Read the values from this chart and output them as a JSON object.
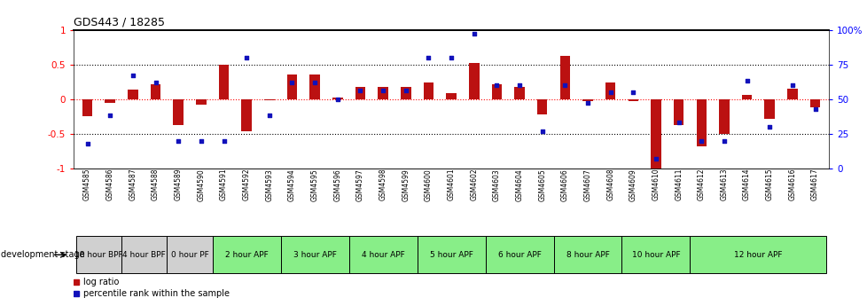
{
  "title": "GDS443 / 18285",
  "samples": [
    "GSM4585",
    "GSM4586",
    "GSM4587",
    "GSM4588",
    "GSM4589",
    "GSM4590",
    "GSM4591",
    "GSM4592",
    "GSM4593",
    "GSM4594",
    "GSM4595",
    "GSM4596",
    "GSM4597",
    "GSM4598",
    "GSM4599",
    "GSM4600",
    "GSM4601",
    "GSM4602",
    "GSM4603",
    "GSM4604",
    "GSM4605",
    "GSM4606",
    "GSM4607",
    "GSM4608",
    "GSM4609",
    "GSM4610",
    "GSM4611",
    "GSM4612",
    "GSM4613",
    "GSM4614",
    "GSM4615",
    "GSM4616",
    "GSM4617"
  ],
  "log_ratio": [
    -0.25,
    -0.05,
    0.14,
    0.22,
    -0.38,
    -0.08,
    0.5,
    -0.46,
    -0.02,
    0.36,
    0.36,
    0.02,
    0.18,
    0.18,
    0.18,
    0.24,
    0.08,
    0.52,
    0.22,
    0.18,
    -0.22,
    0.62,
    -0.03,
    0.24,
    -0.03,
    -1.0,
    -0.38,
    -0.68,
    -0.5,
    0.06,
    -0.28,
    0.15,
    -0.12
  ],
  "percentile": [
    18,
    38,
    67,
    62,
    20,
    20,
    20,
    80,
    38,
    62,
    62,
    50,
    56,
    56,
    56,
    80,
    80,
    97,
    60,
    60,
    27,
    60,
    47,
    55,
    55,
    7,
    33,
    20,
    20,
    63,
    30,
    60,
    43
  ],
  "stages": [
    {
      "label": "18 hour BPF",
      "start": 0,
      "end": 2,
      "color": "#d0d0d0"
    },
    {
      "label": "4 hour BPF",
      "start": 2,
      "end": 4,
      "color": "#d0d0d0"
    },
    {
      "label": "0 hour PF",
      "start": 4,
      "end": 6,
      "color": "#d0d0d0"
    },
    {
      "label": "2 hour APF",
      "start": 6,
      "end": 9,
      "color": "#88ee88"
    },
    {
      "label": "3 hour APF",
      "start": 9,
      "end": 12,
      "color": "#88ee88"
    },
    {
      "label": "4 hour APF",
      "start": 12,
      "end": 15,
      "color": "#88ee88"
    },
    {
      "label": "5 hour APF",
      "start": 15,
      "end": 18,
      "color": "#88ee88"
    },
    {
      "label": "6 hour APF",
      "start": 18,
      "end": 21,
      "color": "#88ee88"
    },
    {
      "label": "8 hour APF",
      "start": 21,
      "end": 24,
      "color": "#88ee88"
    },
    {
      "label": "10 hour APF",
      "start": 24,
      "end": 27,
      "color": "#88ee88"
    },
    {
      "label": "12 hour APF",
      "start": 27,
      "end": 33,
      "color": "#88ee88"
    }
  ],
  "bar_color": "#bb1111",
  "dot_color": "#1111bb",
  "yticks_left": [
    -1,
    -0.5,
    0,
    0.5,
    1
  ],
  "ytick_labels_left": [
    "-1",
    "-0.5",
    "0",
    "0.5",
    "1"
  ],
  "yticks_right": [
    0,
    25,
    50,
    75,
    100
  ],
  "ytick_labels_right": [
    "0",
    "25",
    "50",
    "75",
    "100%"
  ],
  "bg_color": "#ffffff"
}
